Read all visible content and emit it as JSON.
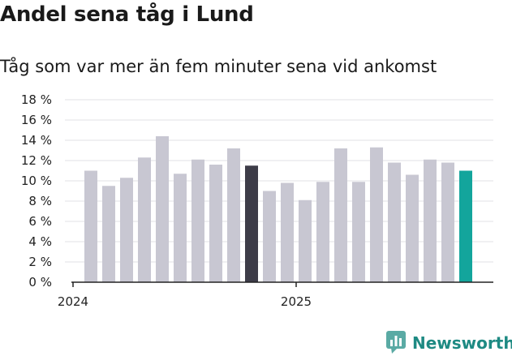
{
  "title": "Andel sena tåg i Lund",
  "subtitle": "Tåg som var mer än fem minuter sena vid ankomst",
  "brand": {
    "name": "Newsworthy",
    "icon": "newsworthy-logo-icon",
    "color": "#1e8a83"
  },
  "chart_data": {
    "type": "bar",
    "title": "Andel sena tåg i Lund",
    "subtitle": "Tåg som var mer än fem minuter sena vid ankomst",
    "xlabel": "",
    "ylabel": "",
    "ylim": [
      0,
      18
    ],
    "y_ticks": [
      "0 %",
      "2 %",
      "4 %",
      "6 %",
      "8 %",
      "10 %",
      "12 %",
      "14 %",
      "16 %",
      "18 %"
    ],
    "y_tick_values": [
      0,
      2,
      4,
      6,
      8,
      10,
      12,
      14,
      16,
      18
    ],
    "x_tick_labels": [
      {
        "label": "2024",
        "index": 0
      },
      {
        "label": "2025",
        "index": 12
      }
    ],
    "grid": true,
    "colors": {
      "default": "#c8c7d2",
      "highlight": "#3d3c48",
      "latest": "#13a59c"
    },
    "values": [
      11.0,
      9.5,
      10.3,
      12.3,
      14.4,
      10.7,
      12.1,
      11.6,
      13.2,
      11.5,
      9.0,
      9.8,
      8.1,
      9.9,
      13.2,
      9.9,
      13.3,
      11.8,
      10.6,
      12.1,
      11.8,
      11.0
    ],
    "highlight_index": 9,
    "latest_index": 21
  }
}
